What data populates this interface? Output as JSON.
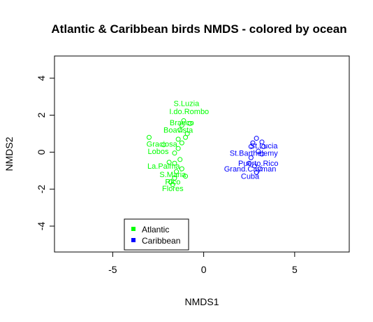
{
  "chart_data": {
    "type": "scatter",
    "title": "Atlantic & Caribbean birds NMDS - colored by ocean",
    "xlabel": "NMDS1",
    "ylabel": "NMDS2",
    "xlim": [
      -8.2,
      8.0
    ],
    "ylim": [
      -5.4,
      5.2
    ],
    "xticks": [
      -5,
      0,
      5
    ],
    "yticks": [
      -4,
      -2,
      0,
      2,
      4
    ],
    "grid": false,
    "legend_position": "bottom-left",
    "series": [
      {
        "name": "Atlantic",
        "color": "#00ff00",
        "points": [
          {
            "x": -1.1,
            "y": 1.7
          },
          {
            "x": -1.2,
            "y": 1.45
          },
          {
            "x": -0.75,
            "y": 1.55
          },
          {
            "x": -1.3,
            "y": 1.2
          },
          {
            "x": -0.9,
            "y": 1.0
          },
          {
            "x": -1.0,
            "y": 0.8
          },
          {
            "x": -1.4,
            "y": 0.7
          },
          {
            "x": -1.2,
            "y": 0.5
          },
          {
            "x": -3.0,
            "y": 0.8
          },
          {
            "x": -2.2,
            "y": 0.4
          },
          {
            "x": -1.4,
            "y": 0.2
          },
          {
            "x": -1.6,
            "y": -0.05
          },
          {
            "x": -1.3,
            "y": -0.4
          },
          {
            "x": -1.9,
            "y": -0.55
          },
          {
            "x": -1.6,
            "y": -0.6
          },
          {
            "x": -1.2,
            "y": -0.9
          },
          {
            "x": -1.5,
            "y": -1.05
          },
          {
            "x": -1.0,
            "y": -1.3
          },
          {
            "x": -1.6,
            "y": -1.4
          },
          {
            "x": -1.8,
            "y": -1.6
          },
          {
            "x": -1.7,
            "y": -1.75
          }
        ],
        "labels": [
          {
            "text": "S.Luzia",
            "x": -0.95,
            "y": 2.65
          },
          {
            "text": "I.do.Rombo",
            "x": -0.8,
            "y": 2.2
          },
          {
            "text": "Branco",
            "x": -1.2,
            "y": 1.6
          },
          {
            "text": "Boavista",
            "x": -1.4,
            "y": 1.2
          },
          {
            "text": "Graciosa",
            "x": -2.3,
            "y": 0.45
          },
          {
            "text": "Lobos",
            "x": -2.5,
            "y": 0.05
          },
          {
            "text": "La.Palma",
            "x": -2.2,
            "y": -0.75
          },
          {
            "text": "S.Maria",
            "x": -1.7,
            "y": -1.2
          },
          {
            "text": "Rico",
            "x": -1.7,
            "y": -1.6
          },
          {
            "text": "Flores",
            "x": -1.7,
            "y": -1.95
          }
        ]
      },
      {
        "name": "Caribbean",
        "color": "#0000ff",
        "points": [
          {
            "x": 2.9,
            "y": 0.75
          },
          {
            "x": 2.7,
            "y": 0.5
          },
          {
            "x": 3.2,
            "y": 0.55
          },
          {
            "x": 2.6,
            "y": 0.3
          },
          {
            "x": 3.3,
            "y": 0.3
          },
          {
            "x": 3.0,
            "y": 0.05
          },
          {
            "x": 3.2,
            "y": -0.1
          },
          {
            "x": 2.6,
            "y": -0.3
          },
          {
            "x": 2.5,
            "y": -0.6
          },
          {
            "x": 2.8,
            "y": -0.75
          },
          {
            "x": 3.1,
            "y": -0.9
          },
          {
            "x": 2.9,
            "y": -1.1
          }
        ],
        "labels": [
          {
            "text": "St.Lucia",
            "x": 3.3,
            "y": 0.35
          },
          {
            "text": "St.Barthelemy",
            "x": 2.75,
            "y": -0.05
          },
          {
            "text": "Puerto.Rico",
            "x": 3.0,
            "y": -0.6
          },
          {
            "text": "Grand.Cayman",
            "x": 2.55,
            "y": -0.9
          },
          {
            "text": "Cuba",
            "x": 2.55,
            "y": -1.3
          }
        ]
      }
    ]
  }
}
